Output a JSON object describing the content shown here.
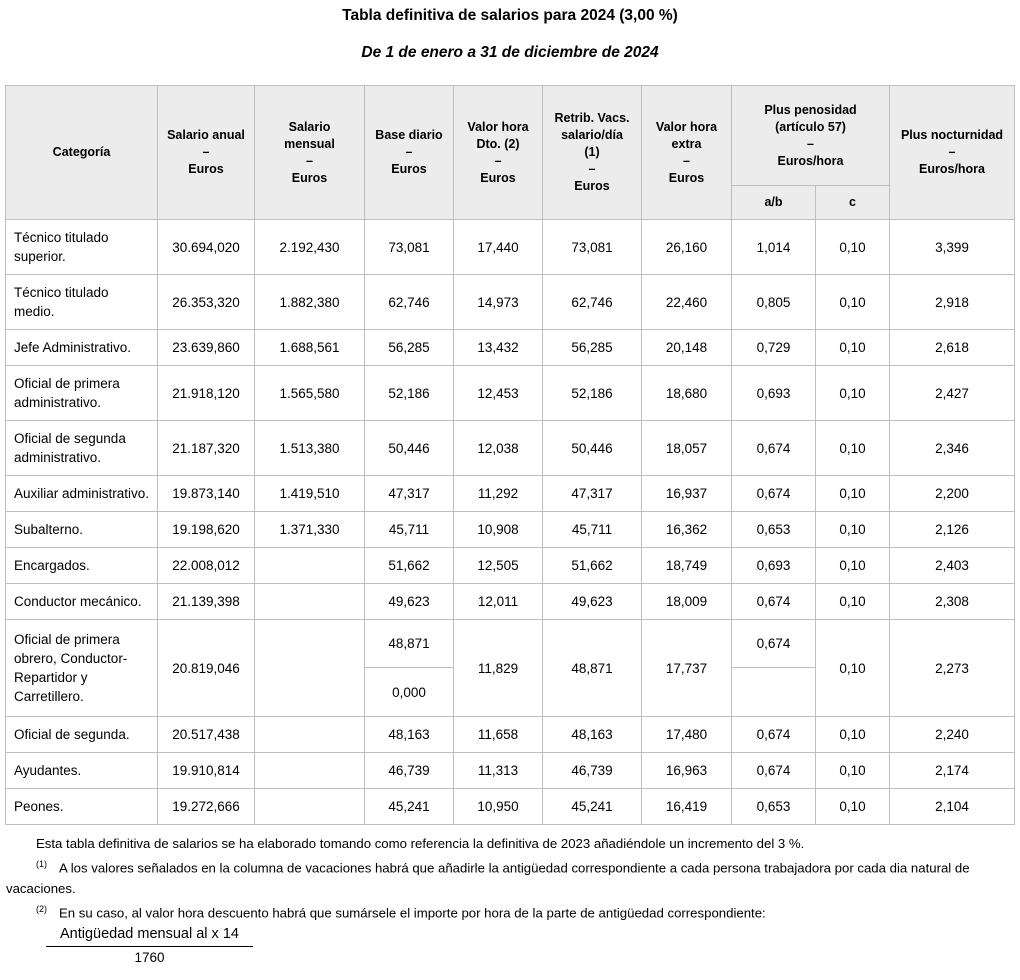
{
  "title": "Tabla definitiva de salarios para 2024 (3,00 %)",
  "subtitle": "De 1 de enero a 31 de diciembre de 2024",
  "colors": {
    "border": "#bfbfbf",
    "header_bg": "#ececec",
    "text": "#000000"
  },
  "table": {
    "headers": {
      "categoria": "Categoría",
      "anual": "Salario anual\n–\nEuros",
      "mensual": "Salario\nmensual\n–\nEuros",
      "base": "Base diario\n–\nEuros",
      "vhd": "Valor hora\nDto. (2)\n–\nEuros",
      "retrib": "Retrib. Vacs.\nsalario/día\n(1)\n–\nEuros",
      "vhe": "Valor hora\nextra\n–\nEuros",
      "penosidad": "Plus penosidad\n(artículo 57)\n–\nEuros/hora",
      "ab": "a/b",
      "c": "c",
      "nocturnidad": "Plus nocturnidad\n–\nEuros/hora"
    },
    "rows": [
      {
        "categoria": "Técnico titulado superior.",
        "anual": "30.694,020",
        "mensual": "2.192,430",
        "base": "73,081",
        "vhd": "17,440",
        "retrib": "73,081",
        "vhe": "26,160",
        "ab": "1,014",
        "c": "0,10",
        "nocturnidad": "3,399"
      },
      {
        "categoria": "Técnico titulado medio.",
        "anual": "26.353,320",
        "mensual": "1.882,380",
        "base": "62,746",
        "vhd": "14,973",
        "retrib": "62,746",
        "vhe": "22,460",
        "ab": "0,805",
        "c": "0,10",
        "nocturnidad": "2,918"
      },
      {
        "categoria": "Jefe Administrativo.",
        "anual": "23.639,860",
        "mensual": "1.688,561",
        "base": "56,285",
        "vhd": "13,432",
        "retrib": "56,285",
        "vhe": "20,148",
        "ab": "0,729",
        "c": "0,10",
        "nocturnidad": "2,618"
      },
      {
        "categoria": "Oficial de primera administrativo.",
        "anual": "21.918,120",
        "mensual": "1.565,580",
        "base": "52,186",
        "vhd": "12,453",
        "retrib": "52,186",
        "vhe": "18,680",
        "ab": "0,693",
        "c": "0,10",
        "nocturnidad": "2,427"
      },
      {
        "categoria": "Oficial de segunda administrativo.",
        "anual": "21.187,320",
        "mensual": "1.513,380",
        "base": "50,446",
        "vhd": "12,038",
        "retrib": "50,446",
        "vhe": "18,057",
        "ab": "0,674",
        "c": "0,10",
        "nocturnidad": "2,346"
      },
      {
        "categoria": "Auxiliar administrativo.",
        "anual": "19.873,140",
        "mensual": "1.419,510",
        "base": "47,317",
        "vhd": "11,292",
        "retrib": "47,317",
        "vhe": "16,937",
        "ab": "0,674",
        "c": "0,10",
        "nocturnidad": "2,200"
      },
      {
        "categoria": "Subalterno.",
        "anual": "19.198,620",
        "mensual": "1.371,330",
        "base": "45,711",
        "vhd": "10,908",
        "retrib": "45,711",
        "vhe": "16,362",
        "ab": "0,653",
        "c": "0,10",
        "nocturnidad": "2,126"
      },
      {
        "categoria": "Encargados.",
        "anual": "22.008,012",
        "mensual": "",
        "base": "51,662",
        "vhd": "12,505",
        "retrib": "51,662",
        "vhe": "18,749",
        "ab": "0,693",
        "c": "0,10",
        "nocturnidad": "2,403"
      },
      {
        "categoria": "Conductor mecánico.",
        "anual": "21.139,398",
        "mensual": "",
        "base": "49,623",
        "vhd": "12,011",
        "retrib": "49,623",
        "vhe": "18,009",
        "ab": "0,674",
        "c": "0,10",
        "nocturnidad": "2,308"
      },
      {
        "categoria": "Oficial de primera obrero, Conductor-Repartidor y Carretillero.",
        "anual": "20.819,046",
        "mensual": "",
        "base": [
          "48,871",
          "0,000"
        ],
        "vhd": "11,829",
        "retrib": "48,871",
        "vhe": "17,737",
        "ab": [
          "0,674",
          ""
        ],
        "c": "0,10",
        "nocturnidad": "2,273"
      },
      {
        "categoria": "Oficial de segunda.",
        "anual": "20.517,438",
        "mensual": "",
        "base": "48,163",
        "vhd": "11,658",
        "retrib": "48,163",
        "vhe": "17,480",
        "ab": "0,674",
        "c": "0,10",
        "nocturnidad": "2,240"
      },
      {
        "categoria": "Ayudantes.",
        "anual": "19.910,814",
        "mensual": "",
        "base": "46,739",
        "vhd": "11,313",
        "retrib": "46,739",
        "vhe": "16,963",
        "ab": "0,674",
        "c": "0,10",
        "nocturnidad": "2,174"
      },
      {
        "categoria": "Peones.",
        "anual": "19.272,666",
        "mensual": "",
        "base": "45,241",
        "vhd": "10,950",
        "retrib": "45,241",
        "vhe": "16,419",
        "ab": "0,653",
        "c": "0,10",
        "nocturnidad": "2,104"
      }
    ]
  },
  "notes": {
    "intro": "Esta tabla definitiva de salarios se ha elaborado tomando como referencia la definitiva de 2023 añadiéndole un incremento del 3 %.",
    "note1_marker": "(1)",
    "note1": "A los valores señalados en la columna de vacaciones habrá que añadirle la antigüedad correspondiente a cada persona trabajadora por cada dia natural de vacaciones.",
    "note2_marker": "(2)",
    "note2": "En su caso, al valor hora descuento habrá que sumársele el importe por hora de la parte de antigüedad correspondiente:",
    "formula_numerator": "Antigüedad mensual al x 14",
    "formula_denominator": "1760"
  }
}
